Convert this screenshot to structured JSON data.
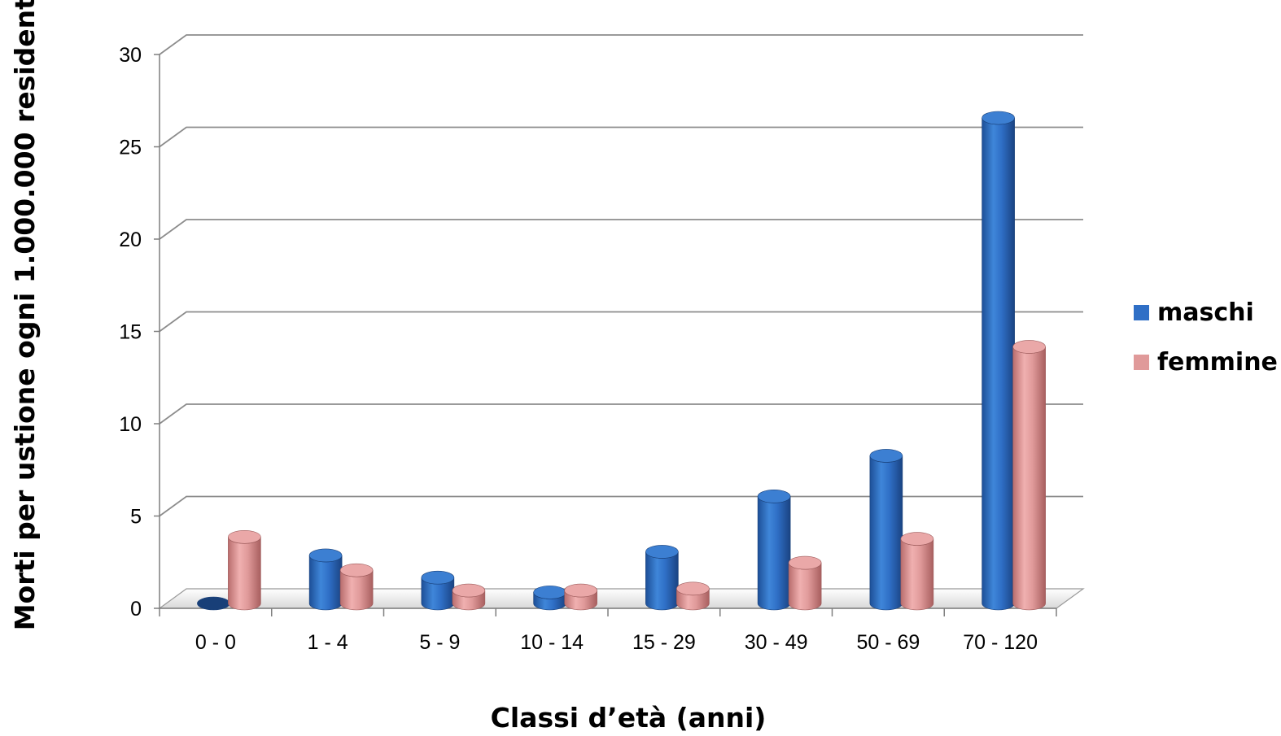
{
  "chart_data": {
    "type": "bar",
    "categories": [
      "0 - 0",
      "1 - 4",
      "5 - 9",
      "10 - 14",
      "15 - 29",
      "30 - 49",
      "50 - 69",
      "70 - 120"
    ],
    "series": [
      {
        "name": "maschi",
        "color": "#2f6fc6",
        "values": [
          0.0,
          2.6,
          1.4,
          0.6,
          2.8,
          5.8,
          8.0,
          26.3
        ]
      },
      {
        "name": "femmine",
        "color": "#e09a9a",
        "values": [
          3.6,
          1.8,
          0.7,
          0.7,
          0.8,
          2.2,
          3.5,
          13.9
        ]
      }
    ],
    "xlabel": "Classi d’età (anni)",
    "ylabel": "Morti per ustione ogni 1.000.000 residenti",
    "ylim": [
      0,
      30
    ],
    "yticks": [
      "0",
      "5",
      "10",
      "15",
      "20",
      "25",
      "30"
    ],
    "grid": true,
    "legend": "right",
    "style": "3d-cylinder"
  }
}
